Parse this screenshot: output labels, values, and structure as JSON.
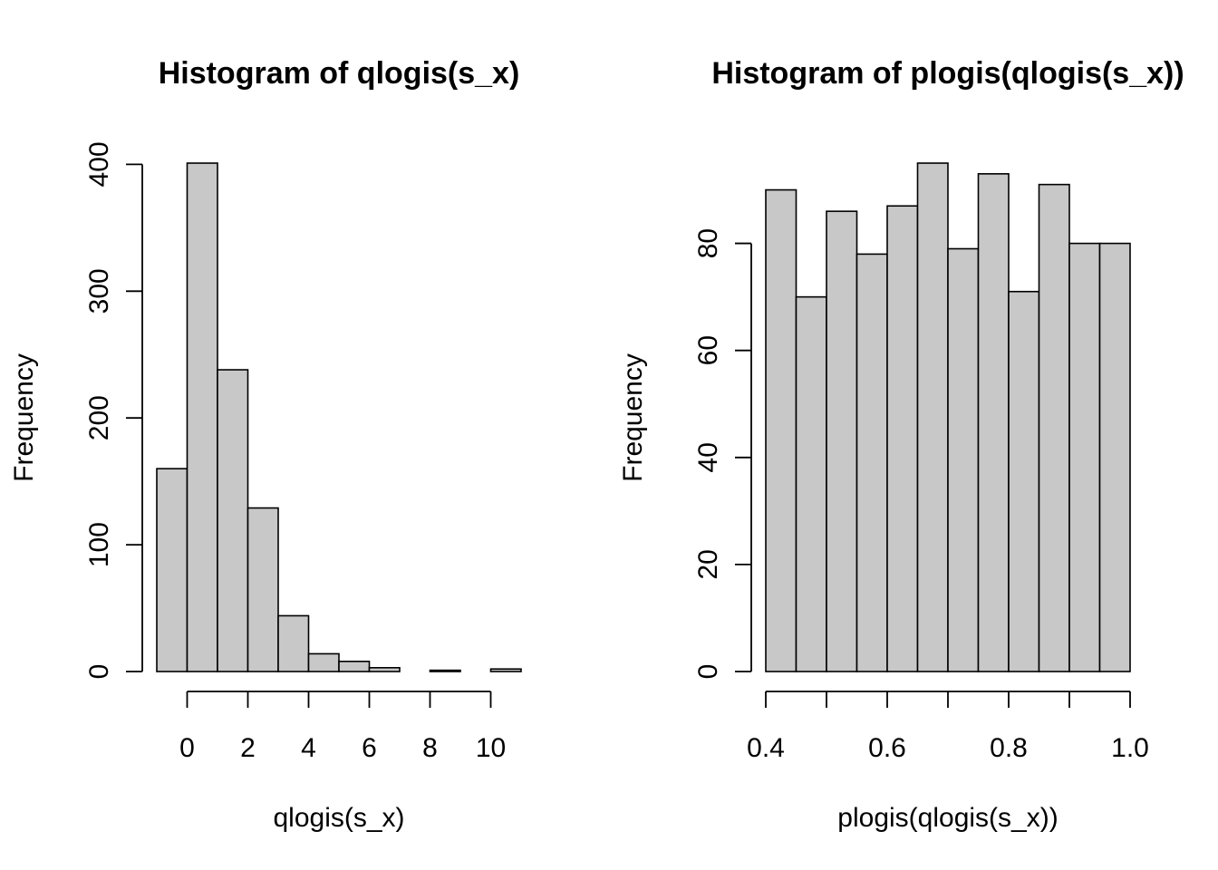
{
  "chart_data": [
    {
      "type": "bar",
      "histogram": true,
      "title": "Histogram of qlogis(s_x)",
      "xlabel": "qlogis(s_x)",
      "ylabel": "Frequency",
      "bin_edges": [
        -1,
        0,
        1,
        2,
        3,
        4,
        5,
        6,
        7,
        8,
        9,
        10,
        11
      ],
      "values": [
        160,
        401,
        238,
        129,
        44,
        14,
        8,
        3,
        0,
        1,
        0,
        2
      ],
      "xlim": [
        -1,
        11
      ],
      "ylim": [
        0,
        401
      ],
      "x_ticks": [
        0,
        2,
        4,
        6,
        8,
        10
      ],
      "x_tick_labels": [
        "0",
        "2",
        "4",
        "6",
        "8",
        "10"
      ],
      "y_ticks": [
        0,
        100,
        200,
        300,
        400
      ],
      "y_tick_labels": [
        "0",
        "100",
        "200",
        "300",
        "400"
      ],
      "grid": false
    },
    {
      "type": "bar",
      "histogram": true,
      "title": "Histogram of plogis(qlogis(s_x))",
      "xlabel": "plogis(qlogis(s_x))",
      "ylabel": "Frequency",
      "bin_edges": [
        0.4,
        0.45,
        0.5,
        0.55,
        0.6,
        0.65,
        0.7,
        0.75,
        0.8,
        0.85,
        0.9,
        0.95,
        1.0
      ],
      "values": [
        90,
        70,
        86,
        78,
        87,
        95,
        79,
        93,
        71,
        91,
        80,
        80
      ],
      "xlim": [
        0.4,
        1.0
      ],
      "ylim": [
        0,
        95
      ],
      "x_ticks": [
        0.4,
        0.5,
        0.6,
        0.7,
        0.8,
        0.9,
        1.0
      ],
      "x_tick_labels": [
        "0.4",
        "",
        "0.6",
        "",
        "0.8",
        "",
        "1.0"
      ],
      "y_ticks": [
        0,
        20,
        40,
        60,
        80
      ],
      "y_tick_labels": [
        "0",
        "20",
        "40",
        "60",
        "80"
      ],
      "grid": false
    }
  ]
}
